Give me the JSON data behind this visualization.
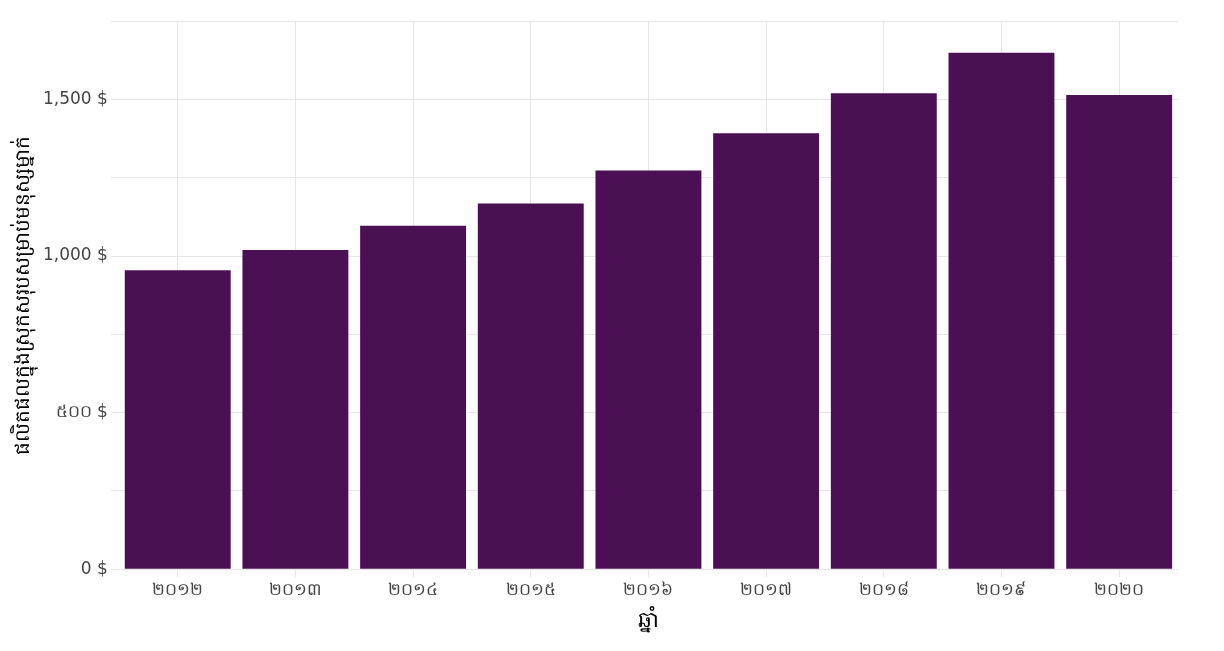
{
  "chart_data": {
    "type": "bar",
    "xlabel": "ឆ្នាំ",
    "ylabel": "ផលិតផលក្នុងស្រុកសរុបសម្រាប់មនុស្សម្នាក់",
    "categories": [
      "២០១២",
      "២០១៣",
      "២០១៤",
      "២០១៥",
      "២០១៦",
      "២០១៧",
      "២០១៨",
      "២០១៩",
      "២០២០"
    ],
    "values": [
      955,
      1019,
      1097,
      1168,
      1273,
      1392,
      1520,
      1649,
      1514
    ],
    "color": "#4b1053",
    "ylim": [
      0,
      1750
    ],
    "yticks": [
      {
        "value": 0,
        "label": "0 $"
      },
      {
        "value": 250,
        "label": null
      },
      {
        "value": 500,
        "label": "៥០០ $"
      },
      {
        "value": 750,
        "label": null
      },
      {
        "value": 1000,
        "label": "1,000 $"
      },
      {
        "value": 1250,
        "label": null
      },
      {
        "value": 1500,
        "label": "1,500 $"
      },
      {
        "value": 1750,
        "label": null
      }
    ],
    "grid": true
  }
}
